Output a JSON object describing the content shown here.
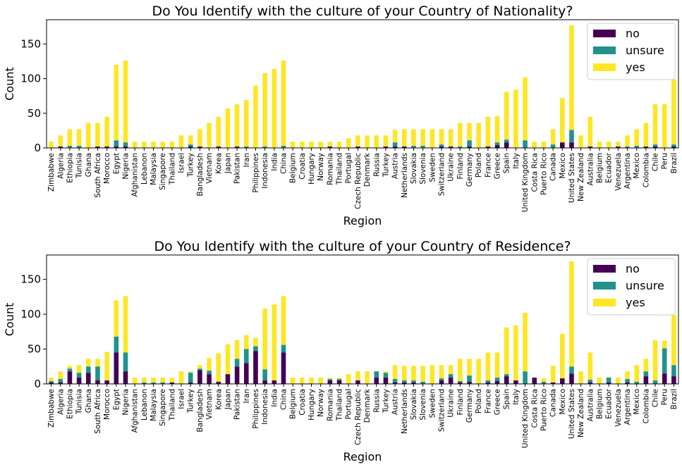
{
  "colors": {
    "no": "#440154",
    "unsure": "#21918c",
    "yes": "#fde725"
  },
  "chart_data": [
    {
      "type": "bar",
      "stacked": true,
      "title": "Do You Identify with the culture of your Country of Nationality?",
      "xlabel": "Region",
      "ylabel": "Count",
      "ylim": [
        0,
        185
      ],
      "yticks": [
        0,
        50,
        100,
        150
      ],
      "legend_position": "top-right",
      "categories": [
        "Zimbabwe",
        "Algeria",
        "Ethiopia",
        "Tunisia",
        "Ghana",
        "South Africa",
        "Morocco",
        "Egypt",
        "Nigeria",
        "Afghanistan",
        "Lebanon",
        "Malaysia",
        "Singapore",
        "Thailand",
        "Israel",
        "Turkey",
        "Bangladesh",
        "Vietnam",
        "Korea",
        "Japan",
        "Pakistan",
        "Iran",
        "Philippines",
        "Indonesia",
        "India",
        "China",
        "Belgium",
        "Croatia",
        "Hungary",
        "Norway",
        "Romania",
        "Thailand",
        "Portugal",
        "Czech Republic",
        "Denmark",
        "Russia",
        "Turkey",
        "Austria",
        "Netherlands",
        "Slovakia",
        "Slovenia",
        "Sweden",
        "Switzerland",
        "Ukraine",
        "Finland",
        "Germany",
        "Poland",
        "France",
        "Greece",
        "Spain",
        "Italy",
        "United Kingdom",
        "Costa Rica",
        "Puerto Rico",
        "Canada",
        "Mexico",
        "United States",
        "New Zealand",
        "Australia",
        "Belgium",
        "Ecuador",
        "Venezuela",
        "Argentina",
        "Mexico",
        "Colombia",
        "Chile",
        "Peru",
        "Brazil"
      ],
      "series": [
        {
          "name": "no",
          "values": [
            0,
            2,
            0,
            0,
            0,
            2,
            2,
            2,
            2,
            0,
            0,
            0,
            0,
            0,
            0,
            2,
            2,
            0,
            2,
            0,
            2,
            0,
            0,
            0,
            0,
            0,
            0,
            0,
            0,
            0,
            2,
            0,
            0,
            2,
            0,
            0,
            2,
            2,
            2,
            0,
            0,
            0,
            2,
            2,
            0,
            2,
            0,
            2,
            4,
            8,
            0,
            0,
            0,
            0,
            0,
            8,
            8,
            0,
            2,
            0,
            0,
            2,
            0,
            0,
            2,
            2,
            0,
            2
          ]
        },
        {
          "name": "unsure",
          "values": [
            0,
            0,
            3,
            3,
            0,
            0,
            0,
            9,
            6,
            0,
            0,
            0,
            0,
            0,
            0,
            3,
            0,
            0,
            0,
            0,
            0,
            2,
            0,
            2,
            0,
            3,
            0,
            0,
            0,
            0,
            0,
            0,
            0,
            0,
            0,
            0,
            0,
            6,
            0,
            3,
            3,
            0,
            3,
            0,
            2,
            9,
            0,
            0,
            4,
            4,
            0,
            11,
            0,
            0,
            5,
            0,
            18,
            0,
            0,
            0,
            0,
            0,
            2,
            3,
            0,
            3,
            0,
            3
          ]
        },
        {
          "name": "yes",
          "values": [
            9,
            16,
            24,
            24,
            36,
            34,
            43,
            109,
            118,
            9,
            9,
            9,
            9,
            9,
            18,
            13,
            25,
            36,
            43,
            57,
            61,
            67,
            90,
            106,
            114,
            123,
            9,
            9,
            9,
            9,
            7,
            9,
            14,
            16,
            18,
            18,
            16,
            18,
            25,
            24,
            24,
            27,
            22,
            25,
            34,
            25,
            36,
            43,
            38,
            69,
            84,
            91,
            9,
            9,
            22,
            64,
            151,
            18,
            43,
            9,
            9,
            7,
            16,
            24,
            34,
            58,
            63,
            94
          ]
        }
      ]
    },
    {
      "type": "bar",
      "stacked": true,
      "title": "Do You Identify with the culture of your Country of Residence?",
      "xlabel": "Region",
      "ylabel": "Count",
      "ylim": [
        0,
        185
      ],
      "yticks": [
        0,
        50,
        100,
        150
      ],
      "legend_position": "top-right",
      "categories": [
        "Zimbabwe",
        "Algeria",
        "Ethiopia",
        "Tunisia",
        "Ghana",
        "South Africa",
        "Morocco",
        "Egypt",
        "Nigeria",
        "Afghanistan",
        "Lebanon",
        "Malaysia",
        "Singapore",
        "Thailand",
        "Israel",
        "Turkey",
        "Bangladesh",
        "Vietnam",
        "Korea",
        "Japan",
        "Pakistan",
        "Iran",
        "Philippines",
        "Indonesia",
        "India",
        "China",
        "Belgium",
        "Croatia",
        "Hungary",
        "Norway",
        "Romania",
        "Thailand",
        "Portugal",
        "Czech Republic",
        "Denmark",
        "Russia",
        "Turkey",
        "Austria",
        "Netherlands",
        "Slovakia",
        "Slovenia",
        "Sweden",
        "Switzerland",
        "Ukraine",
        "Finland",
        "Germany",
        "Poland",
        "France",
        "Greece",
        "Spain",
        "Italy",
        "United Kingdom",
        "Costa Rica",
        "Puerto Rico",
        "Canada",
        "Mexico",
        "United States",
        "New Zealand",
        "Australia",
        "Belgium",
        "Ecuador",
        "Venezuela",
        "Argentina",
        "Mexico",
        "Colombia",
        "Chile",
        "Peru",
        "Brazil"
      ],
      "series": [
        {
          "name": "no",
          "values": [
            2,
            2,
            18,
            9,
            16,
            5,
            5,
            45,
            18,
            0,
            0,
            0,
            0,
            2,
            0,
            2,
            20,
            14,
            3,
            14,
            25,
            30,
            47,
            5,
            5,
            45,
            0,
            0,
            0,
            0,
            5,
            5,
            0,
            5,
            0,
            9,
            9,
            2,
            2,
            2,
            0,
            0,
            5,
            9,
            2,
            3,
            0,
            2,
            4,
            11,
            5,
            0,
            9,
            0,
            2,
            8,
            15,
            0,
            2,
            0,
            2,
            0,
            2,
            0,
            11,
            0,
            15,
            11
          ]
        },
        {
          "name": "unsure",
          "values": [
            2,
            5,
            4,
            7,
            9,
            20,
            0,
            23,
            27,
            0,
            2,
            2,
            2,
            0,
            0,
            14,
            2,
            5,
            0,
            0,
            11,
            20,
            7,
            16,
            0,
            11,
            0,
            0,
            0,
            0,
            2,
            2,
            0,
            0,
            0,
            9,
            7,
            5,
            3,
            3,
            3,
            0,
            3,
            5,
            2,
            9,
            0,
            3,
            5,
            3,
            0,
            18,
            0,
            3,
            0,
            0,
            10,
            0,
            4,
            0,
            7,
            0,
            5,
            3,
            7,
            5,
            36,
            16
          ]
        },
        {
          "name": "yes",
          "values": [
            5,
            11,
            4,
            11,
            11,
            11,
            41,
            52,
            81,
            9,
            7,
            7,
            7,
            7,
            18,
            2,
            5,
            18,
            41,
            43,
            27,
            20,
            12,
            87,
            109,
            70,
            9,
            9,
            9,
            9,
            2,
            2,
            14,
            13,
            18,
            0,
            2,
            20,
            21,
            21,
            23,
            27,
            19,
            13,
            32,
            24,
            36,
            40,
            36,
            67,
            79,
            84,
            0,
            5,
            24,
            64,
            151,
            18,
            39,
            9,
            0,
            9,
            11,
            24,
            18,
            58,
            11,
            72
          ]
        }
      ]
    }
  ]
}
